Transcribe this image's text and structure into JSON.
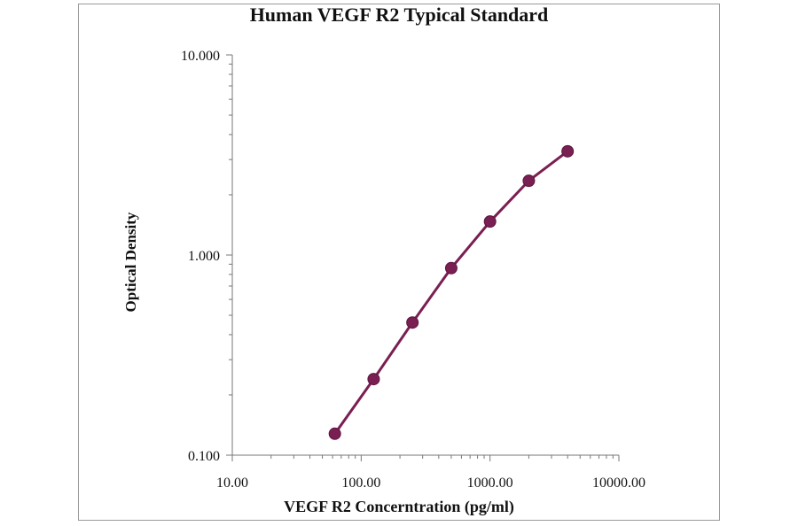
{
  "chart_data": {
    "type": "line",
    "title": "Human VEGF R2 Typical Standard",
    "xlabel": "VEGF R2 Concerntration (pg/ml)",
    "ylabel": "Optical Density",
    "x_scale": "log",
    "y_scale": "log",
    "xlim": [
      10,
      10000
    ],
    "ylim": [
      0.1,
      10
    ],
    "x_ticks": [
      "10.00",
      "100.00",
      "1000.00",
      "10000.00"
    ],
    "y_ticks": [
      "10.000",
      "1.000",
      "0.100"
    ],
    "grid": false,
    "series": [
      {
        "x": [
          62.5,
          125,
          250,
          500,
          1000,
          2000,
          4000
        ],
        "y": [
          0.128,
          0.24,
          0.46,
          0.86,
          1.47,
          2.35,
          3.3
        ],
        "color": "#7a1f52"
      }
    ]
  }
}
